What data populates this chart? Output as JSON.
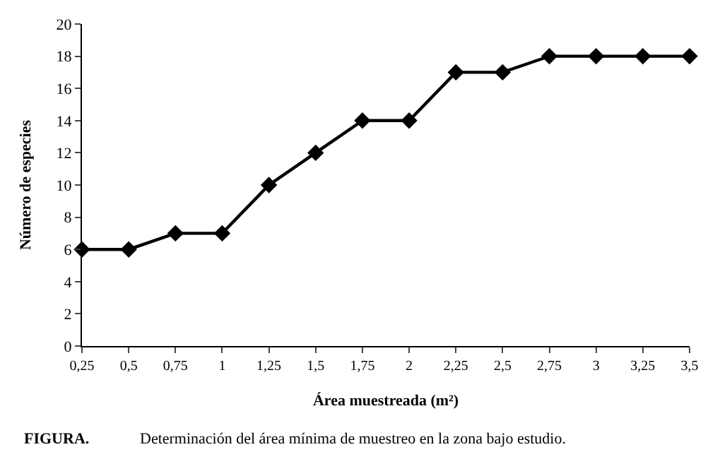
{
  "chart_data": {
    "type": "line",
    "categories": [
      "0,25",
      "0,5",
      "0,75",
      "1",
      "1,25",
      "1,5",
      "1,75",
      "2",
      "2,25",
      "2,5",
      "2,75",
      "3",
      "3,25",
      "3,5"
    ],
    "series": [
      {
        "color": "#000000",
        "values": [
          6,
          6,
          7,
          7,
          10,
          12,
          14,
          14,
          17,
          17,
          18,
          18,
          18,
          18
        ]
      }
    ],
    "xlabel": "Área muestreada (m²)",
    "ylabel": "Número de especies",
    "ylim": [
      0,
      20
    ],
    "yticks": [
      0,
      2,
      4,
      6,
      8,
      10,
      12,
      14,
      16,
      18,
      20
    ],
    "legend": false,
    "marker": "diamond",
    "line_style": "solid",
    "annotations": [
      "FIGURA.",
      "Determinación del área mínima de muestreo en la zona bajo estudio."
    ]
  }
}
